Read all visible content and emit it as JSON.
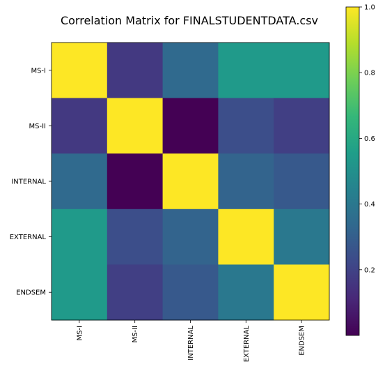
{
  "chart_data": {
    "type": "heatmap",
    "title": "Correlation Matrix for FINALSTUDENTDATA.csv",
    "row_labels": [
      "MS-I",
      "MS-II",
      "INTERNAL",
      "EXTERNAL",
      "ENDSEM"
    ],
    "col_labels": [
      "MS-I",
      "MS-II",
      "INTERNAL",
      "EXTERNAL",
      "ENDSEM"
    ],
    "values": [
      [
        1.0,
        0.17,
        0.34,
        0.54,
        0.54
      ],
      [
        0.17,
        1.0,
        0.0,
        0.24,
        0.19
      ],
      [
        0.34,
        0.0,
        1.0,
        0.32,
        0.28
      ],
      [
        0.54,
        0.24,
        0.32,
        1.0,
        0.4
      ],
      [
        0.54,
        0.19,
        0.28,
        0.4,
        1.0
      ]
    ],
    "colormap": "viridis",
    "colorbar": {
      "range": [
        0.0,
        1.0
      ],
      "ticks": [
        0.2,
        0.4,
        0.6,
        0.8,
        1.0
      ],
      "tick_labels": [
        "0.2",
        "0.4",
        "0.6",
        "0.8",
        "1.0"
      ]
    },
    "grid": false
  }
}
